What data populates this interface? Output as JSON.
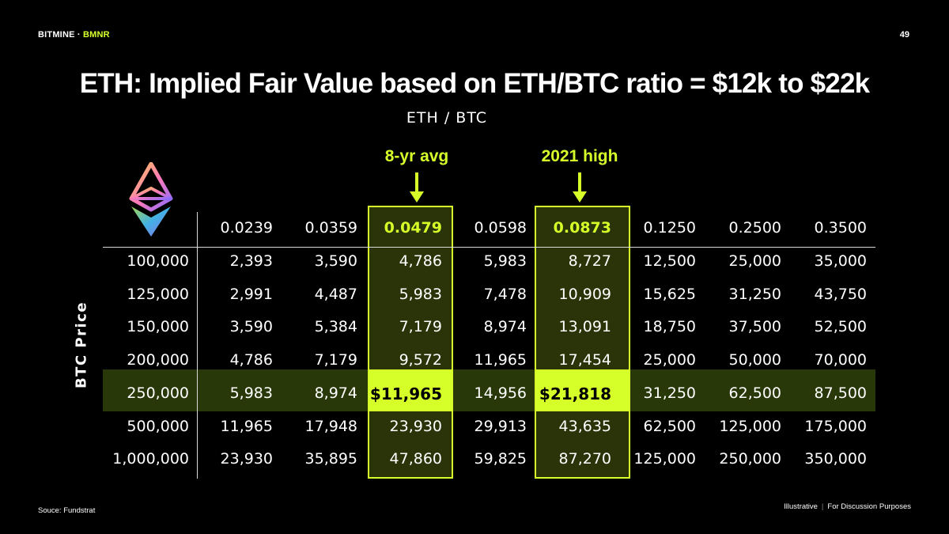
{
  "header": {
    "brand": "BITMINE",
    "dot": " · ",
    "ticker": "BMNR",
    "page_number": "49"
  },
  "title": "ETH: Implied Fair Value based on ETH/BTC ratio = $12k to $22k",
  "subtitle": "ETH / BTC",
  "y_axis_label": "BTC Price",
  "callouts": [
    {
      "label": "8-yr avg",
      "column": 2
    },
    {
      "label": "2021 high",
      "column": 4
    }
  ],
  "colors": {
    "accent": "#d6ff2a",
    "highlight_row": "#283808",
    "background": "#000000"
  },
  "icons": {
    "logo": "ethereum-logo-icon",
    "arrow": "arrow-down-icon"
  },
  "table": {
    "columns": [
      "0.0239",
      "0.0359",
      "0.0479",
      "0.0598",
      "0.0873",
      "0.1250",
      "0.2500",
      "0.3500"
    ],
    "highlight_columns": [
      2,
      4
    ],
    "highlight_row": 4,
    "rows": [
      {
        "label": "100,000",
        "cells": [
          "2,393",
          "3,590",
          "4,786",
          "5,983",
          "8,727",
          "12,500",
          "25,000",
          "35,000"
        ]
      },
      {
        "label": "125,000",
        "cells": [
          "2,991",
          "4,487",
          "5,983",
          "7,478",
          "10,909",
          "15,625",
          "31,250",
          "43,750"
        ]
      },
      {
        "label": "150,000",
        "cells": [
          "3,590",
          "5,384",
          "7,179",
          "8,974",
          "13,091",
          "18,750",
          "37,500",
          "52,500"
        ]
      },
      {
        "label": "200,000",
        "cells": [
          "4,786",
          "7,179",
          "9,572",
          "11,965",
          "17,454",
          "25,000",
          "50,000",
          "70,000"
        ]
      },
      {
        "label": "250,000",
        "cells": [
          "5,983",
          "8,974",
          "$11,965",
          "14,956",
          "$21,818",
          "31,250",
          "62,500",
          "87,500"
        ]
      },
      {
        "label": "500,000",
        "cells": [
          "11,965",
          "17,948",
          "23,930",
          "29,913",
          "43,635",
          "62,500",
          "125,000",
          "175,000"
        ]
      },
      {
        "label": "1,000,000",
        "cells": [
          "23,930",
          "35,895",
          "47,860",
          "59,825",
          "87,270",
          "125,000",
          "250,000",
          "350,000"
        ]
      }
    ]
  },
  "footer": {
    "source": "Souce: Fundstrat",
    "disclaimer_left": "Illustrative",
    "separator": "|",
    "disclaimer_right": "For Discussion Purposes"
  }
}
